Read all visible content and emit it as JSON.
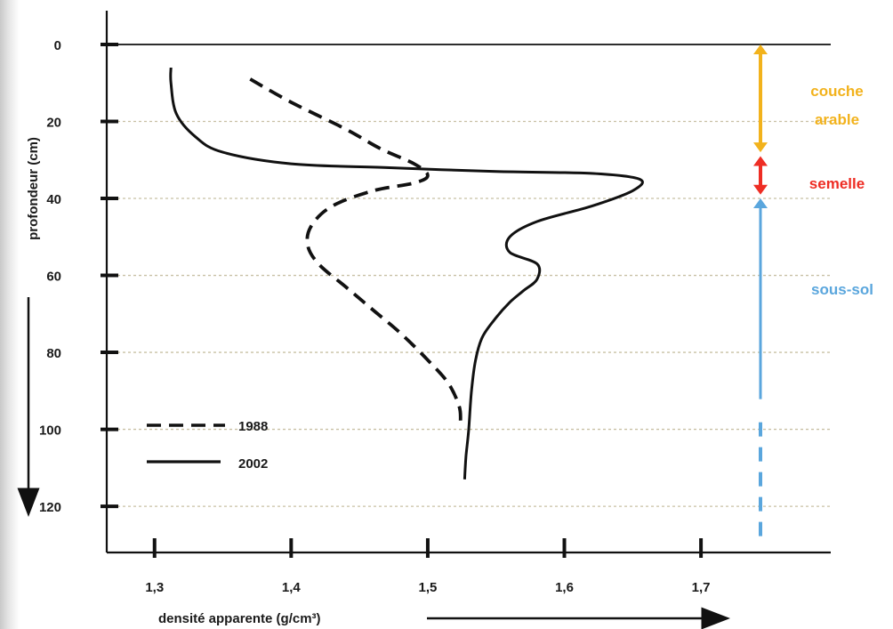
{
  "chart_data": {
    "type": "line",
    "xlabel": "densité  apparente (g/cm³)",
    "ylabel": "profondeur  (cm)",
    "xlim": [
      1.265,
      1.795
    ],
    "ylim": [
      0,
      132
    ],
    "y_inverted": true,
    "x_ticks": [
      1.3,
      1.4,
      1.5,
      1.6,
      1.7
    ],
    "x_tick_labels": [
      "1,3",
      "1,4",
      "1,5",
      "1,6",
      "1,7"
    ],
    "y_ticks": [
      0,
      20,
      40,
      60,
      80,
      100,
      120
    ],
    "y_tick_labels": [
      "0",
      "20",
      "40",
      "60",
      "80",
      "100",
      "120"
    ],
    "grid": "horizontal dotted at y ticks",
    "legend_position": "bottom-left",
    "series": [
      {
        "name": "1988",
        "style": "dashed",
        "color": "#111111",
        "points": [
          [
            1.37,
            9
          ],
          [
            1.4,
            15
          ],
          [
            1.44,
            22
          ],
          [
            1.465,
            27
          ],
          [
            1.49,
            31
          ],
          [
            1.5,
            34
          ],
          [
            1.49,
            36
          ],
          [
            1.46,
            38
          ],
          [
            1.43,
            42
          ],
          [
            1.415,
            47
          ],
          [
            1.412,
            52
          ],
          [
            1.42,
            57
          ],
          [
            1.44,
            63
          ],
          [
            1.46,
            69
          ],
          [
            1.48,
            75
          ],
          [
            1.5,
            82
          ],
          [
            1.515,
            88
          ],
          [
            1.523,
            94
          ],
          [
            1.524,
            98
          ]
        ]
      },
      {
        "name": "2002",
        "style": "solid",
        "color": "#111111",
        "points": [
          [
            1.312,
            6
          ],
          [
            1.312,
            10
          ],
          [
            1.316,
            18
          ],
          [
            1.33,
            24
          ],
          [
            1.35,
            28
          ],
          [
            1.4,
            31
          ],
          [
            1.47,
            32
          ],
          [
            1.55,
            33
          ],
          [
            1.62,
            33.5
          ],
          [
            1.655,
            35
          ],
          [
            1.65,
            38
          ],
          [
            1.62,
            42
          ],
          [
            1.58,
            46
          ],
          [
            1.56,
            50
          ],
          [
            1.56,
            54
          ],
          [
            1.58,
            57
          ],
          [
            1.58,
            61
          ],
          [
            1.57,
            64
          ],
          [
            1.56,
            67
          ],
          [
            1.55,
            71
          ],
          [
            1.54,
            76
          ],
          [
            1.535,
            82
          ],
          [
            1.532,
            90
          ],
          [
            1.53,
            100
          ],
          [
            1.528,
            107
          ],
          [
            1.527,
            113
          ]
        ]
      }
    ],
    "zones": [
      {
        "label": "couche arable",
        "color": "#f2b21c",
        "from": 0,
        "to": 28
      },
      {
        "label": "semelle",
        "color": "#ee2d24",
        "from": 29,
        "to": 39
      },
      {
        "label": "sous-sol",
        "color": "#5aa6dd",
        "from": 40,
        "to": 94,
        "dashed_to": 130
      }
    ]
  },
  "labels": {
    "zone_top_line1": "couche",
    "zone_top_line2": "arable",
    "zone_mid": "semelle",
    "zone_bottom": "sous-sol"
  }
}
